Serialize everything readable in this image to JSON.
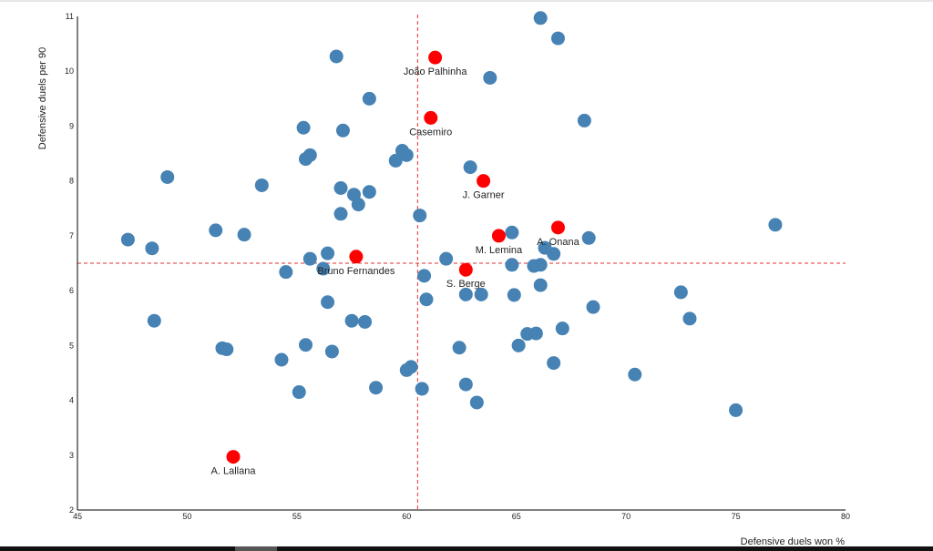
{
  "chart_data": {
    "type": "scatter",
    "xlabel": "Defensive duels won %",
    "ylabel": "Defensive duels per 90",
    "xlim": [
      45,
      80
    ],
    "ylim": [
      2,
      11
    ],
    "xticks": [
      45,
      50,
      55,
      60,
      65,
      70,
      75,
      80
    ],
    "yticks": [
      2,
      3,
      4,
      5,
      6,
      7,
      8,
      9,
      10,
      11
    ],
    "reference_lines": {
      "x": 60.5,
      "y": 6.5,
      "color": "#e03030",
      "style": "dashed"
    },
    "colors": {
      "others": "#4682b4",
      "highlighted": "#ff0000"
    },
    "highlighted": [
      {
        "label": "João Palhinha",
        "x": 61.3,
        "y": 10.25
      },
      {
        "label": "Casemiro",
        "x": 61.1,
        "y": 9.15
      },
      {
        "label": "J. Garner",
        "x": 63.5,
        "y": 8.0
      },
      {
        "label": "A. Onana",
        "x": 66.9,
        "y": 7.15
      },
      {
        "label": "M. Lemina",
        "x": 64.2,
        "y": 7.0
      },
      {
        "label": "Bruno Fernandes",
        "x": 57.7,
        "y": 6.62
      },
      {
        "label": "S. Berge",
        "x": 62.7,
        "y": 6.38
      },
      {
        "label": "A. Lallana",
        "x": 52.1,
        "y": 2.97
      }
    ],
    "points": [
      [
        66.1,
        10.97
      ],
      [
        66.9,
        10.6
      ],
      [
        56.8,
        10.27
      ],
      [
        63.8,
        9.88
      ],
      [
        58.3,
        9.5
      ],
      [
        68.1,
        9.1
      ],
      [
        55.3,
        8.97
      ],
      [
        57.1,
        8.92
      ],
      [
        59.8,
        8.55
      ],
      [
        60.0,
        8.47
      ],
      [
        55.6,
        8.47
      ],
      [
        55.4,
        8.4
      ],
      [
        59.5,
        8.37
      ],
      [
        62.9,
        8.25
      ],
      [
        49.1,
        8.07
      ],
      [
        53.4,
        7.92
      ],
      [
        57.0,
        7.87
      ],
      [
        57.6,
        7.75
      ],
      [
        58.3,
        7.8
      ],
      [
        57.8,
        7.57
      ],
      [
        57.0,
        7.4
      ],
      [
        60.6,
        7.37
      ],
      [
        76.8,
        7.2
      ],
      [
        51.3,
        7.1
      ],
      [
        52.6,
        7.02
      ],
      [
        64.8,
        7.06
      ],
      [
        68.3,
        6.96
      ],
      [
        47.3,
        6.93
      ],
      [
        66.3,
        6.78
      ],
      [
        48.4,
        6.77
      ],
      [
        66.7,
        6.67
      ],
      [
        56.4,
        6.68
      ],
      [
        55.6,
        6.58
      ],
      [
        61.8,
        6.58
      ],
      [
        64.8,
        6.47
      ],
      [
        65.8,
        6.45
      ],
      [
        66.1,
        6.47
      ],
      [
        56.2,
        6.4
      ],
      [
        54.5,
        6.34
      ],
      [
        60.8,
        6.27
      ],
      [
        66.1,
        6.1
      ],
      [
        72.5,
        5.97
      ],
      [
        62.7,
        5.93
      ],
      [
        63.4,
        5.93
      ],
      [
        64.9,
        5.92
      ],
      [
        60.9,
        5.84
      ],
      [
        56.4,
        5.79
      ],
      [
        68.5,
        5.7
      ],
      [
        72.9,
        5.49
      ],
      [
        48.5,
        5.45
      ],
      [
        57.5,
        5.45
      ],
      [
        58.1,
        5.43
      ],
      [
        67.1,
        5.31
      ],
      [
        65.5,
        5.21
      ],
      [
        65.9,
        5.22
      ],
      [
        55.4,
        5.01
      ],
      [
        65.1,
        5.0
      ],
      [
        62.4,
        4.96
      ],
      [
        51.6,
        4.95
      ],
      [
        51.8,
        4.93
      ],
      [
        56.6,
        4.89
      ],
      [
        54.3,
        4.74
      ],
      [
        66.7,
        4.68
      ],
      [
        60.2,
        4.61
      ],
      [
        60.0,
        4.55
      ],
      [
        70.4,
        4.47
      ],
      [
        62.7,
        4.29
      ],
      [
        58.6,
        4.23
      ],
      [
        60.7,
        4.21
      ],
      [
        55.1,
        4.15
      ],
      [
        63.2,
        3.96
      ],
      [
        75.0,
        3.82
      ]
    ]
  }
}
